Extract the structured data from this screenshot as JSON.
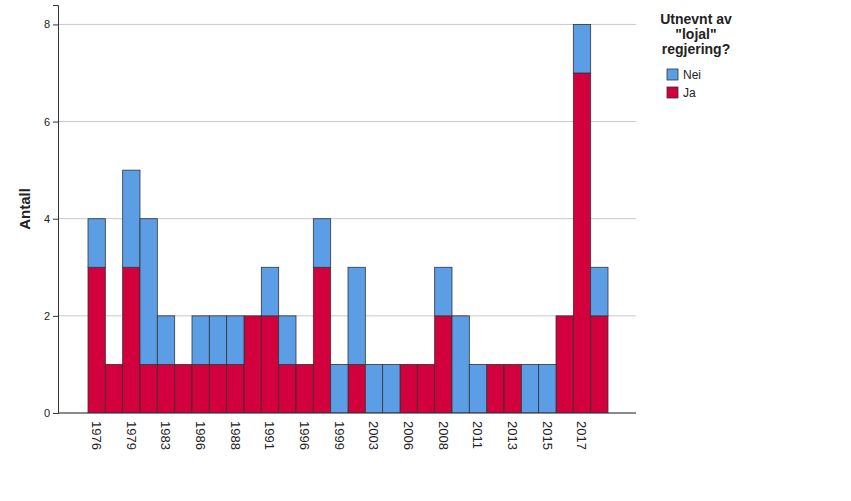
{
  "chart_data": {
    "type": "bar",
    "stacked": true,
    "y_label": "Antall",
    "legend_title": [
      "Utnevnt av",
      "\"lojal\"",
      "regjering?"
    ],
    "legend": "top-right",
    "grid": true,
    "categories": [
      "1976",
      null,
      "1979",
      null,
      "1983",
      null,
      "1986",
      null,
      "1988",
      null,
      "1991",
      null,
      "1996",
      null,
      "1999",
      null,
      "2003",
      null,
      "2006",
      null,
      "2008",
      null,
      "2011",
      null,
      "2013",
      null,
      "2015",
      null,
      "2017",
      null
    ],
    "series": [
      {
        "name": "Ja",
        "color": "#d2003c",
        "values": [
          3,
          1,
          3,
          1,
          1,
          1,
          1,
          1,
          1,
          2,
          2,
          1,
          1,
          3,
          0,
          1,
          0,
          0,
          1,
          1,
          2,
          0,
          0,
          1,
          1,
          0,
          0,
          2,
          7,
          2
        ]
      },
      {
        "name": "Nei",
        "color": "#5b9ee6",
        "values": [
          1,
          0,
          2,
          3,
          1,
          0,
          1,
          1,
          1,
          0,
          1,
          1,
          0,
          1,
          1,
          2,
          1,
          1,
          0,
          0,
          1,
          2,
          1,
          0,
          0,
          1,
          1,
          0,
          1,
          1
        ]
      }
    ],
    "ylim": [
      0,
      8.4
    ],
    "yticks": [
      0,
      2,
      4,
      6,
      8
    ]
  }
}
